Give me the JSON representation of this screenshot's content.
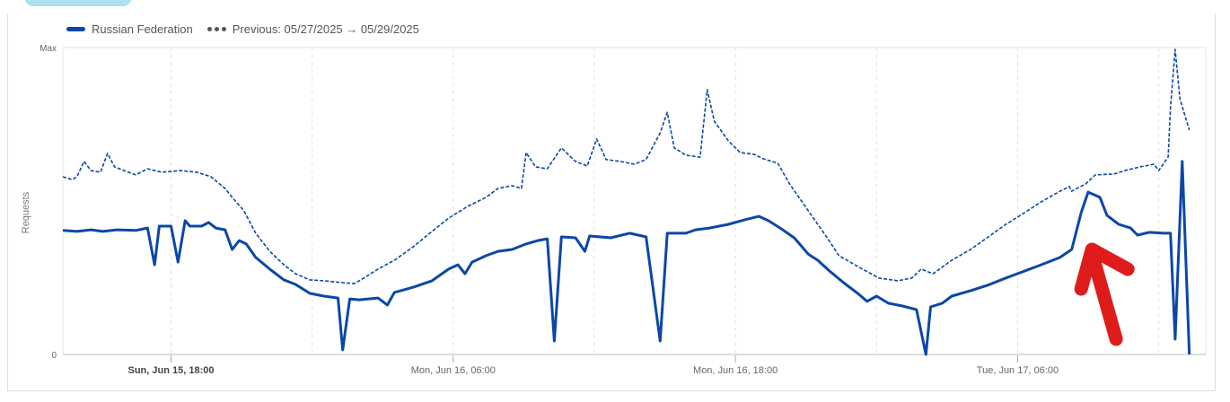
{
  "chart_data": {
    "type": "line",
    "title": "",
    "xlabel": "",
    "ylabel": "Requests",
    "x_units": "hours relative to Sun, Jun 15, 18:00",
    "xlim": [
      -4.6,
      44
    ],
    "ylim": [
      0,
      100
    ],
    "y_ticks": [
      {
        "value": 0,
        "label": "0"
      },
      {
        "value": 100,
        "label": "Max"
      }
    ],
    "x_ticks": [
      {
        "value": 0,
        "label": "Sun, Jun 15, 18:00",
        "bold": true
      },
      {
        "value": 12,
        "label": "Mon, Jun 16, 06:00"
      },
      {
        "value": 24,
        "label": "Mon, Jun 16, 18:00"
      },
      {
        "value": 36,
        "label": "Tue, Jun 17, 06:00"
      }
    ],
    "minor_grid": [
      6,
      18,
      30,
      42
    ],
    "legend_position": "top-left",
    "series": [
      {
        "name": "Russian Federation",
        "style": "solid",
        "color": "#0b47a8",
        "points": [
          [
            -4.6,
            40.4
          ],
          [
            -4.0,
            40.1
          ],
          [
            -3.4,
            40.6
          ],
          [
            -2.9,
            40.1
          ],
          [
            -2.3,
            40.6
          ],
          [
            -1.5,
            40.4
          ],
          [
            -1.0,
            41.2
          ],
          [
            -0.7,
            29.2
          ],
          [
            -0.5,
            41.8
          ],
          [
            0,
            41.8
          ],
          [
            0.3,
            30.1
          ],
          [
            0.6,
            43.6
          ],
          [
            0.8,
            41.8
          ],
          [
            1.3,
            41.8
          ],
          [
            1.6,
            43.0
          ],
          [
            1.9,
            41.2
          ],
          [
            2.3,
            40.6
          ],
          [
            2.6,
            34.2
          ],
          [
            2.9,
            37.1
          ],
          [
            3.2,
            36.0
          ],
          [
            3.6,
            31.6
          ],
          [
            4.2,
            27.8
          ],
          [
            4.8,
            24.3
          ],
          [
            5.3,
            22.8
          ],
          [
            5.9,
            19.9
          ],
          [
            6.5,
            19.0
          ],
          [
            7.1,
            18.4
          ],
          [
            7.3,
            1.5
          ],
          [
            7.6,
            18.1
          ],
          [
            8.0,
            17.8
          ],
          [
            8.8,
            18.4
          ],
          [
            9.2,
            16.1
          ],
          [
            9.5,
            20.2
          ],
          [
            10.3,
            21.9
          ],
          [
            11.1,
            24.0
          ],
          [
            11.8,
            27.8
          ],
          [
            12.2,
            29.2
          ],
          [
            12.5,
            26.3
          ],
          [
            12.8,
            30.1
          ],
          [
            13.4,
            32.2
          ],
          [
            13.9,
            33.6
          ],
          [
            14.5,
            34.2
          ],
          [
            15.1,
            36.0
          ],
          [
            15.6,
            37.1
          ],
          [
            16.0,
            37.7
          ],
          [
            16.3,
            4.4
          ],
          [
            16.6,
            38.3
          ],
          [
            17.2,
            38.0
          ],
          [
            17.6,
            33.6
          ],
          [
            17.8,
            38.6
          ],
          [
            18.7,
            38.0
          ],
          [
            19.5,
            39.5
          ],
          [
            20.2,
            38.3
          ],
          [
            20.8,
            4.4
          ],
          [
            21.1,
            39.5
          ],
          [
            21.9,
            39.5
          ],
          [
            22.3,
            40.6
          ],
          [
            22.9,
            41.2
          ],
          [
            23.7,
            42.4
          ],
          [
            24.4,
            43.9
          ],
          [
            25.0,
            45.0
          ],
          [
            25.4,
            43.6
          ],
          [
            25.9,
            41.2
          ],
          [
            26.5,
            38.0
          ],
          [
            27.1,
            32.7
          ],
          [
            27.5,
            30.7
          ],
          [
            28.0,
            27.2
          ],
          [
            28.6,
            23.4
          ],
          [
            29.2,
            19.9
          ],
          [
            29.6,
            17.3
          ],
          [
            30.0,
            19.0
          ],
          [
            30.5,
            16.7
          ],
          [
            31.1,
            15.8
          ],
          [
            31.7,
            14.6
          ],
          [
            32.1,
            0
          ],
          [
            32.3,
            15.5
          ],
          [
            32.8,
            16.7
          ],
          [
            33.2,
            19.0
          ],
          [
            34.0,
            20.8
          ],
          [
            34.7,
            22.5
          ],
          [
            35.5,
            24.9
          ],
          [
            36.3,
            27.2
          ],
          [
            37.0,
            29.2
          ],
          [
            37.8,
            31.6
          ],
          [
            38.3,
            34.2
          ],
          [
            38.7,
            46.2
          ],
          [
            39.0,
            52.9
          ],
          [
            39.5,
            51.2
          ],
          [
            39.8,
            45.3
          ],
          [
            40.3,
            42.4
          ],
          [
            40.8,
            41.2
          ],
          [
            41.1,
            38.9
          ],
          [
            41.6,
            39.8
          ],
          [
            42.2,
            39.5
          ],
          [
            42.5,
            39.5
          ],
          [
            42.7,
            5.0
          ],
          [
            43.0,
            62.9
          ],
          [
            43.3,
            0
          ]
        ]
      },
      {
        "name": "Previous: 05/27/2025 → 05/29/2025",
        "style": "dashed",
        "color": "#0b47a8",
        "points": [
          [
            -4.6,
            57.9
          ],
          [
            -4.2,
            57.0
          ],
          [
            -4.0,
            57.9
          ],
          [
            -3.7,
            62.9
          ],
          [
            -3.4,
            59.9
          ],
          [
            -3.0,
            59.4
          ],
          [
            -2.7,
            65.5
          ],
          [
            -2.4,
            61.1
          ],
          [
            -1.5,
            58.5
          ],
          [
            -1.0,
            60.5
          ],
          [
            -0.4,
            59.4
          ],
          [
            0.4,
            59.9
          ],
          [
            1.1,
            59.4
          ],
          [
            1.7,
            57.9
          ],
          [
            2.3,
            54.1
          ],
          [
            2.6,
            51.2
          ],
          [
            3.1,
            46.8
          ],
          [
            3.6,
            39.5
          ],
          [
            4.2,
            33.6
          ],
          [
            4.8,
            29.2
          ],
          [
            5.3,
            26.3
          ],
          [
            5.9,
            24.3
          ],
          [
            6.5,
            24.0
          ],
          [
            7.3,
            23.4
          ],
          [
            7.8,
            23.1
          ],
          [
            8.2,
            24.9
          ],
          [
            8.8,
            27.8
          ],
          [
            9.5,
            30.7
          ],
          [
            10.3,
            35.1
          ],
          [
            11.1,
            40.1
          ],
          [
            11.8,
            44.4
          ],
          [
            12.6,
            48.2
          ],
          [
            13.4,
            51.2
          ],
          [
            13.9,
            54.1
          ],
          [
            14.5,
            55.0
          ],
          [
            14.9,
            54.1
          ],
          [
            15.1,
            65.8
          ],
          [
            15.5,
            61.1
          ],
          [
            16.0,
            60.5
          ],
          [
            16.6,
            67.3
          ],
          [
            17.2,
            62.9
          ],
          [
            17.7,
            61.4
          ],
          [
            18.1,
            70.2
          ],
          [
            18.5,
            63.5
          ],
          [
            19.1,
            62.9
          ],
          [
            19.7,
            62.0
          ],
          [
            20.2,
            63.5
          ],
          [
            20.8,
            72.2
          ],
          [
            21.1,
            78.9
          ],
          [
            21.4,
            67.3
          ],
          [
            21.9,
            64.9
          ],
          [
            22.5,
            64.3
          ],
          [
            22.8,
            86.3
          ],
          [
            23.1,
            76.0
          ],
          [
            23.7,
            69.6
          ],
          [
            24.2,
            65.8
          ],
          [
            24.8,
            65.2
          ],
          [
            25.2,
            63.7
          ],
          [
            25.8,
            62.3
          ],
          [
            26.3,
            55.6
          ],
          [
            27.1,
            46.8
          ],
          [
            27.9,
            38.0
          ],
          [
            28.4,
            32.2
          ],
          [
            29.4,
            27.8
          ],
          [
            30.1,
            24.9
          ],
          [
            30.9,
            24.0
          ],
          [
            31.5,
            24.9
          ],
          [
            31.9,
            27.8
          ],
          [
            32.4,
            26.3
          ],
          [
            33.2,
            30.7
          ],
          [
            34.0,
            34.2
          ],
          [
            34.7,
            38.0
          ],
          [
            35.5,
            42.4
          ],
          [
            36.3,
            46.2
          ],
          [
            37.0,
            49.7
          ],
          [
            37.8,
            53.2
          ],
          [
            38.2,
            54.7
          ],
          [
            38.3,
            53.2
          ],
          [
            38.9,
            55.6
          ],
          [
            39.3,
            58.5
          ],
          [
            40.1,
            58.8
          ],
          [
            40.6,
            60.0
          ],
          [
            41.2,
            61.1
          ],
          [
            41.8,
            62.0
          ],
          [
            42.0,
            59.9
          ],
          [
            42.4,
            64.3
          ],
          [
            42.5,
            80.4
          ],
          [
            42.7,
            99.4
          ],
          [
            42.9,
            83.3
          ],
          [
            43.3,
            73.1
          ]
        ]
      }
    ],
    "annotation": {
      "type": "arrow",
      "color": "#e01b1b",
      "target_x": 38.7
    }
  }
}
